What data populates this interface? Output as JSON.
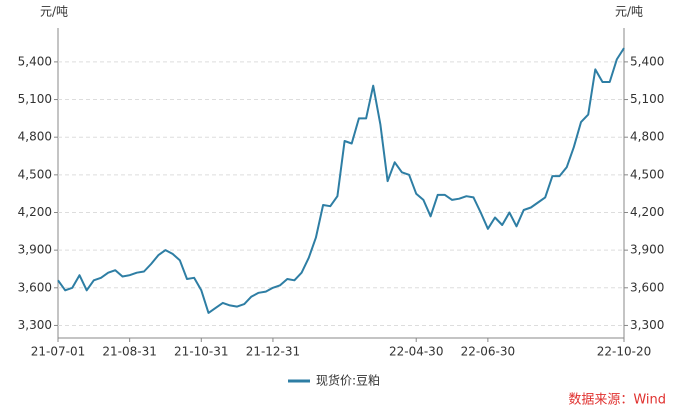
{
  "chart_data": {
    "type": "line",
    "y_label": "元/吨",
    "y2_label": "元/吨",
    "categories": [
      "21-07-01",
      null,
      null,
      null,
      null,
      null,
      null,
      null,
      null,
      null,
      "21-08-31",
      null,
      null,
      null,
      null,
      null,
      null,
      null,
      null,
      null,
      "21-10-31",
      null,
      null,
      null,
      null,
      null,
      null,
      null,
      null,
      null,
      "21-12-31",
      null,
      null,
      null,
      null,
      null,
      null,
      null,
      null,
      null,
      null,
      null,
      null,
      null,
      null,
      null,
      null,
      null,
      null,
      null,
      "22-04-30",
      null,
      null,
      null,
      null,
      null,
      null,
      null,
      null,
      null,
      "22-06-30",
      null,
      null,
      null,
      null,
      null,
      null,
      null,
      null,
      null,
      null,
      null,
      null,
      null,
      null,
      null,
      null,
      null,
      null,
      "22-10-20"
    ],
    "series": [
      {
        "name": "现货价:豆粕",
        "color": "#2e7ea4",
        "values": [
          3660,
          3580,
          3600,
          3700,
          3580,
          3660,
          3680,
          3720,
          3740,
          3690,
          3700,
          3720,
          3730,
          3790,
          3860,
          3900,
          3870,
          3820,
          3670,
          3680,
          3580,
          3400,
          3440,
          3480,
          3460,
          3450,
          3470,
          3530,
          3560,
          3570,
          3600,
          3620,
          3670,
          3660,
          3720,
          3840,
          4000,
          4260,
          4250,
          4330,
          4770,
          4750,
          4950,
          4950,
          5210,
          4900,
          4450,
          4600,
          4520,
          4500,
          4350,
          4300,
          4170,
          4340,
          4340,
          4300,
          4310,
          4330,
          4320,
          4200,
          4070,
          4160,
          4100,
          4200,
          4090,
          4220,
          4240,
          4280,
          4320,
          4490,
          4490,
          4560,
          4720,
          4920,
          4980,
          5340,
          5240,
          5240,
          5420,
          5510
        ]
      }
    ],
    "ylim": [
      3200,
      5670
    ],
    "yticks": [
      {
        "value": 3300,
        "label": "3,300"
      },
      {
        "value": 3600,
        "label": "3,600"
      },
      {
        "value": 3900,
        "label": "3,900"
      },
      {
        "value": 4200,
        "label": "4,200"
      },
      {
        "value": 4500,
        "label": "4,500"
      },
      {
        "value": 4800,
        "label": "4,800"
      },
      {
        "value": 5100,
        "label": "5,100"
      },
      {
        "value": 5400,
        "label": "5,400"
      }
    ],
    "y2lim": [
      3200,
      5670
    ],
    "y2ticks": [
      {
        "value": 3300,
        "label": "3,300"
      },
      {
        "value": 3600,
        "label": "3,600"
      },
      {
        "value": 3900,
        "label": "3,900"
      },
      {
        "value": 4200,
        "label": "4,200"
      },
      {
        "value": 4500,
        "label": "4,500"
      },
      {
        "value": 4800,
        "label": "4,800"
      },
      {
        "value": 5100,
        "label": "5,100"
      },
      {
        "value": 5400,
        "label": "5,400"
      }
    ],
    "grid": true,
    "source": "数据来源：Wind"
  }
}
